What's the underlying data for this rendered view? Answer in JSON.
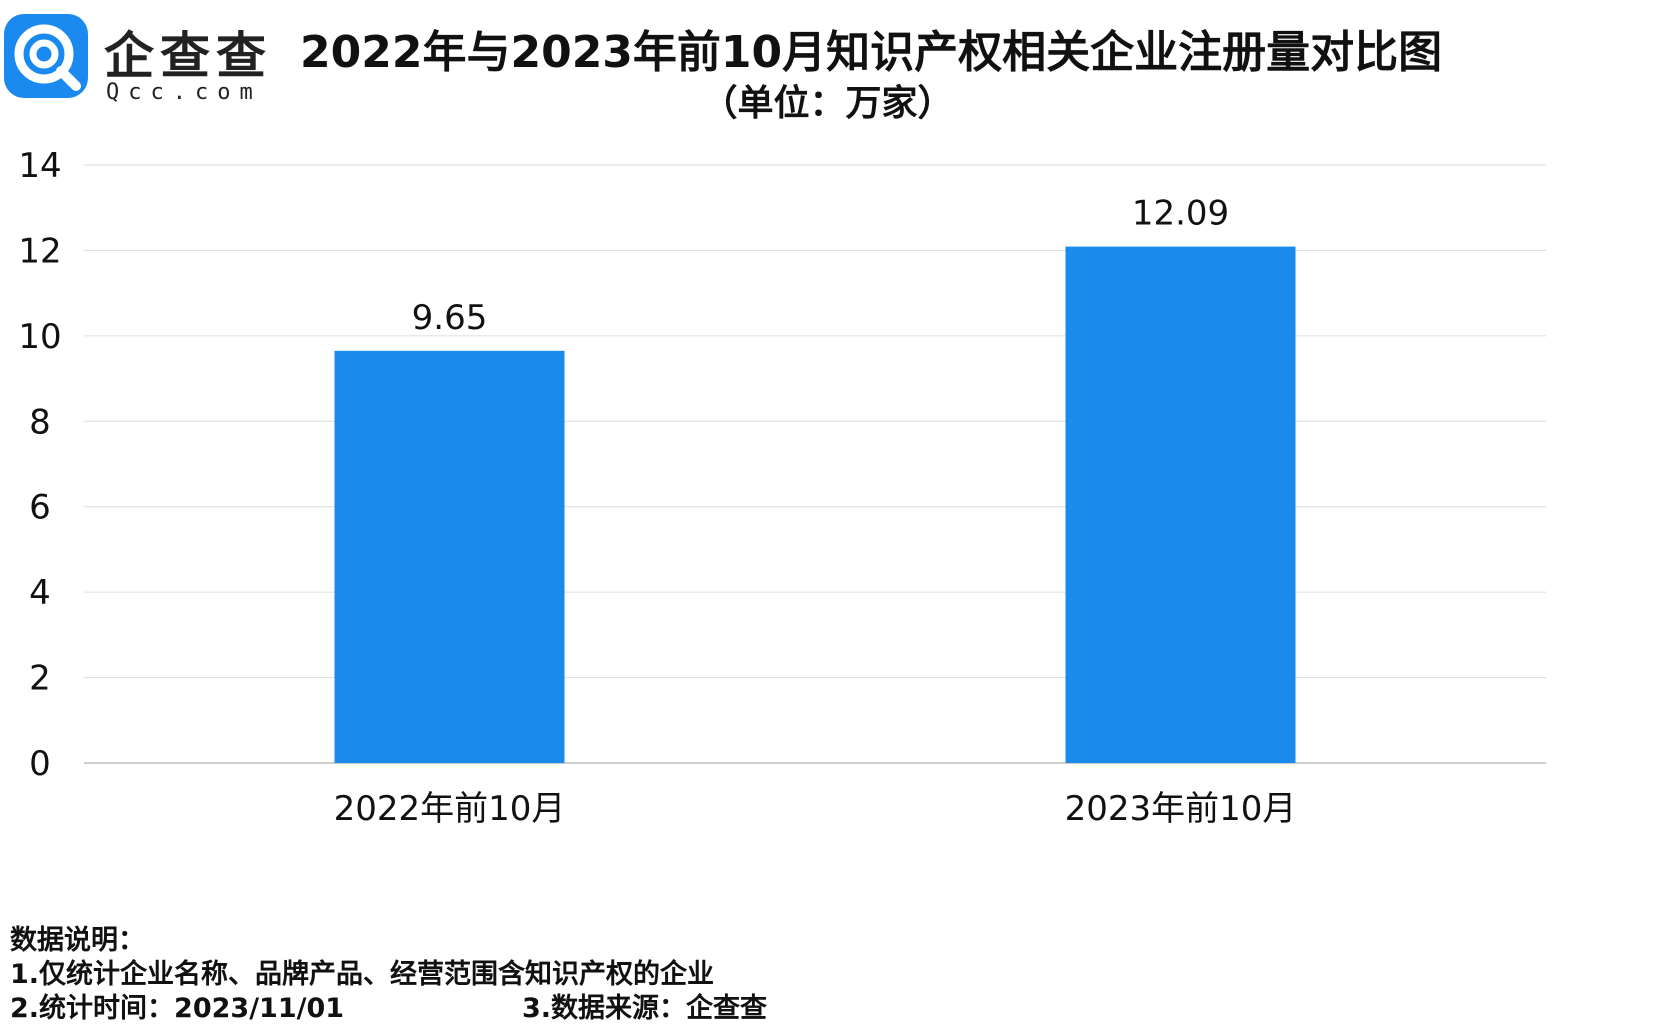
{
  "brand": {
    "name": "企查查",
    "domain": "Qcc.com",
    "accent": "#1a8af0"
  },
  "title": "2022年与2023年前10月知识产权相关企业注册量对比图",
  "subtitle": "（单位：万家）",
  "chart_data": {
    "type": "bar",
    "categories": [
      "2022年前10月",
      "2023年前10月"
    ],
    "values": [
      9.65,
      12.09
    ],
    "data_labels": [
      "9.65",
      "12.09"
    ],
    "ylim": [
      0,
      14
    ],
    "yticks": [
      0,
      2,
      4,
      6,
      8,
      10,
      12,
      14
    ],
    "grid": true,
    "bar_color": "#1a8aeb",
    "xlabel": "",
    "ylabel": ""
  },
  "notes": {
    "heading": "数据说明：",
    "line1": "1.仅统计企业名称、品牌产品、经营范围含知识产权的企业",
    "line2": "2.统计时间：2023/11/01",
    "line3": "3.数据来源：企查查"
  }
}
